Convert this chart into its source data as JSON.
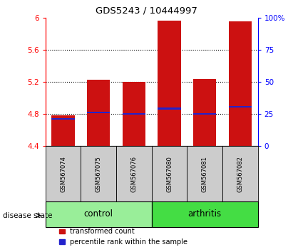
{
  "title": "GDS5243 / 10444997",
  "samples": [
    "GSM567074",
    "GSM567075",
    "GSM567076",
    "GSM567080",
    "GSM567081",
    "GSM567082"
  ],
  "bar_bottom": 4.4,
  "bar_tops": [
    4.78,
    5.23,
    5.2,
    5.96,
    5.24,
    5.95
  ],
  "percentile_values": [
    4.74,
    4.82,
    4.8,
    4.87,
    4.8,
    4.89
  ],
  "ylim_left": [
    4.4,
    6.0
  ],
  "ylim_right": [
    0,
    100
  ],
  "yticks_left": [
    4.4,
    4.8,
    5.2,
    5.6,
    6.0
  ],
  "ytick_labels_left": [
    "4.4",
    "4.8",
    "5.2",
    "5.6",
    "6"
  ],
  "yticks_right": [
    0,
    25,
    50,
    75,
    100
  ],
  "ytick_labels_right": [
    "0",
    "25",
    "50",
    "75",
    "100%"
  ],
  "grid_yticks": [
    4.8,
    5.2,
    5.6
  ],
  "bar_color": "#cc1111",
  "percentile_color": "#2222cc",
  "control_color": "#99ee99",
  "arthritis_color": "#44dd44",
  "label_bg_color": "#cccccc",
  "bar_width": 0.65,
  "legend_items": [
    "transformed count",
    "percentile rank within the sample"
  ],
  "disease_state_label": "disease state"
}
